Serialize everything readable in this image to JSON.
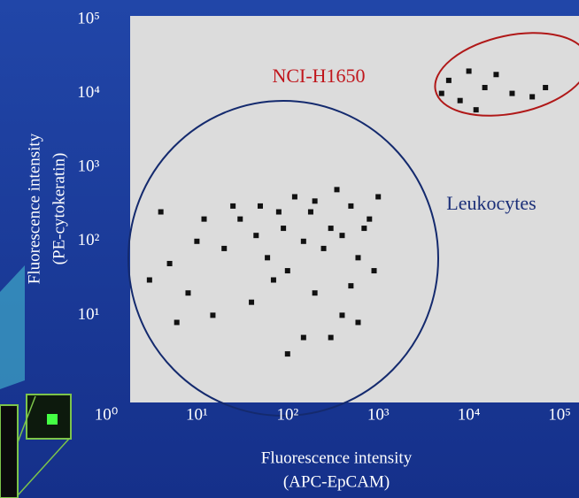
{
  "chart_data": {
    "type": "scatter",
    "x_label": [
      "Fluorescence intensity",
      "(APC-EpCAM)"
    ],
    "y_label": [
      "Fluorescence intensity",
      "(PE-cytokeratin)"
    ],
    "annotations": [
      "NCI-H1650",
      "Leukocytes"
    ],
    "log_x": true,
    "log_y": true,
    "color": "#111111",
    "xlim": [
      1,
      100000
    ],
    "ylim": [
      1,
      100000
    ],
    "xticks": [
      {
        "value": 1,
        "label": "10⁰"
      },
      {
        "value": 10,
        "label": "10¹"
      },
      {
        "value": 100,
        "label": "10²"
      },
      {
        "value": 1000,
        "label": "10³"
      },
      {
        "value": 10000,
        "label": "10⁴"
      },
      {
        "value": 100000,
        "label": "10⁵"
      }
    ],
    "yticks": [
      {
        "value": 10,
        "label": "10¹"
      },
      {
        "value": 100,
        "label": "10²"
      },
      {
        "value": 1000,
        "label": "10³"
      },
      {
        "value": 10000,
        "label": "10⁴"
      },
      {
        "value": 100000,
        "label": "10⁵"
      }
    ],
    "x": [
      30,
      50,
      80,
      120,
      200,
      300,
      500,
      800,
      1000,
      150,
      250,
      400,
      600,
      100,
      60,
      20,
      10,
      5,
      8,
      15,
      40,
      200,
      400,
      300,
      600,
      150,
      100,
      900,
      700,
      350,
      180,
      90,
      45,
      25,
      12,
      4,
      3,
      6,
      70,
      500,
      6000,
      8000,
      10000,
      15000,
      20000,
      30000,
      5000,
      12000,
      50000,
      70000
    ],
    "values": [
      200,
      300,
      250,
      400,
      350,
      150,
      300,
      200,
      400,
      100,
      80,
      120,
      60,
      40,
      60,
      80,
      100,
      50,
      20,
      10,
      15,
      20,
      10,
      5,
      8,
      5,
      3,
      40,
      150,
      500,
      250,
      150,
      120,
      300,
      200,
      250,
      30,
      8,
      30,
      25,
      15000,
      8000,
      20000,
      12000,
      18000,
      10000,
      10000,
      6000,
      9000,
      12000
    ]
  }
}
